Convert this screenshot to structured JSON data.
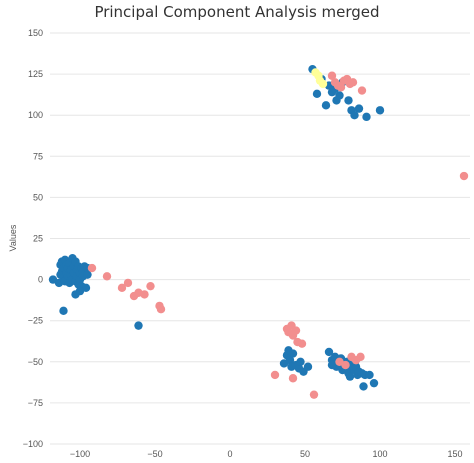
{
  "chart_data": {
    "type": "scatter",
    "title": "Principal Component Analysis merged",
    "xlabel": "",
    "ylabel": "Values",
    "xlim": [
      -120,
      160
    ],
    "ylim": [
      -100,
      150
    ],
    "xticks": [
      -100,
      -50,
      0,
      50,
      100,
      150
    ],
    "xtick_labels": [
      "−100",
      "−50",
      "0",
      "50",
      "100",
      "150"
    ],
    "yticks": [
      -100,
      -75,
      -50,
      -25,
      0,
      25,
      50,
      75,
      100,
      125,
      150
    ],
    "ytick_labels": [
      "−100",
      "−75",
      "−50",
      "−25",
      "0",
      "25",
      "50",
      "75",
      "100",
      "125",
      "150"
    ],
    "grid": true,
    "legend": "none",
    "series": [
      {
        "color": "#1f77b4",
        "points": [
          [
            -118,
            0
          ],
          [
            -114,
            -2
          ],
          [
            -113,
            3
          ],
          [
            -113,
            9
          ],
          [
            -112,
            5
          ],
          [
            -112,
            11
          ],
          [
            -111,
            1
          ],
          [
            -111,
            7
          ],
          [
            -110,
            -1
          ],
          [
            -110,
            12
          ],
          [
            -109,
            4
          ],
          [
            -109,
            9
          ],
          [
            -108,
            2
          ],
          [
            -108,
            7
          ],
          [
            -107,
            -2
          ],
          [
            -107,
            10
          ],
          [
            -106,
            3
          ],
          [
            -106,
            6
          ],
          [
            -105,
            13
          ],
          [
            -105,
            0
          ],
          [
            -104,
            8
          ],
          [
            -104,
            4
          ],
          [
            -103,
            -1
          ],
          [
            -103,
            11
          ],
          [
            -102,
            6
          ],
          [
            -102,
            2
          ],
          [
            -101,
            -3
          ],
          [
            -101,
            8
          ],
          [
            -100,
            4
          ],
          [
            -100,
            0
          ],
          [
            -99,
            7
          ],
          [
            -99,
            -4
          ],
          [
            -98,
            5
          ],
          [
            -98,
            2
          ],
          [
            -97,
            8
          ],
          [
            -96,
            -5
          ],
          [
            -95,
            3
          ],
          [
            -95,
            7
          ],
          [
            -103,
            -9
          ],
          [
            -100,
            -7
          ],
          [
            -111,
            -19
          ],
          [
            -61,
            -28
          ],
          [
            55,
            128
          ],
          [
            58,
            113
          ],
          [
            61,
            122
          ],
          [
            64,
            106
          ],
          [
            66,
            118
          ],
          [
            68,
            114
          ],
          [
            70,
            116
          ],
          [
            71,
            109
          ],
          [
            73,
            112
          ],
          [
            75,
            120
          ],
          [
            79,
            109
          ],
          [
            81,
            103
          ],
          [
            83,
            100
          ],
          [
            86,
            104
          ],
          [
            91,
            99
          ],
          [
            100,
            103
          ],
          [
            36,
            -51
          ],
          [
            38,
            -46
          ],
          [
            39,
            -43
          ],
          [
            40,
            -49
          ],
          [
            41,
            -53
          ],
          [
            42,
            -45
          ],
          [
            44,
            -52
          ],
          [
            46,
            -54
          ],
          [
            47,
            -50
          ],
          [
            49,
            -56
          ],
          [
            52,
            -53
          ],
          [
            66,
            -44
          ],
          [
            68,
            -49
          ],
          [
            70,
            -47
          ],
          [
            71,
            -53
          ],
          [
            72,
            -50
          ],
          [
            73,
            -52
          ],
          [
            74,
            -48
          ],
          [
            75,
            -55
          ],
          [
            76,
            -51
          ],
          [
            77,
            -54
          ],
          [
            78,
            -50
          ],
          [
            79,
            -57
          ],
          [
            80,
            -52
          ],
          [
            82,
            -54
          ],
          [
            83,
            -55
          ],
          [
            84,
            -53
          ],
          [
            85,
            -58
          ],
          [
            86,
            -56
          ],
          [
            88,
            -57
          ],
          [
            89,
            -65
          ],
          [
            90,
            -58
          ],
          [
            93,
            -58
          ],
          [
            96,
            -63
          ],
          [
            68,
            -52
          ],
          [
            80,
            -59
          ]
        ]
      },
      {
        "color": "#f28e8e",
        "points": [
          [
            -92,
            7
          ],
          [
            -82,
            2
          ],
          [
            -72,
            -5
          ],
          [
            -68,
            -2
          ],
          [
            -64,
            -10
          ],
          [
            -61,
            -8
          ],
          [
            -57,
            -9
          ],
          [
            -53,
            -4
          ],
          [
            -47,
            -16
          ],
          [
            -46,
            -18
          ],
          [
            68,
            124
          ],
          [
            70,
            120
          ],
          [
            72,
            118
          ],
          [
            74,
            117
          ],
          [
            76,
            121
          ],
          [
            78,
            122
          ],
          [
            80,
            119
          ],
          [
            82,
            120
          ],
          [
            88,
            115
          ],
          [
            156,
            63
          ],
          [
            30,
            -58
          ],
          [
            38,
            -30
          ],
          [
            39,
            -32
          ],
          [
            41,
            -28
          ],
          [
            42,
            -34
          ],
          [
            44,
            -31
          ],
          [
            45,
            -38
          ],
          [
            48,
            -39
          ],
          [
            42,
            -60
          ],
          [
            56,
            -70
          ],
          [
            73,
            -50
          ],
          [
            77,
            -52
          ],
          [
            81,
            -47
          ],
          [
            84,
            -49
          ],
          [
            87,
            -47
          ]
        ]
      },
      {
        "color": "#ffff99",
        "points": [
          [
            57,
            126
          ],
          [
            59,
            124
          ],
          [
            60,
            121
          ],
          [
            62,
            119
          ]
        ]
      }
    ]
  }
}
